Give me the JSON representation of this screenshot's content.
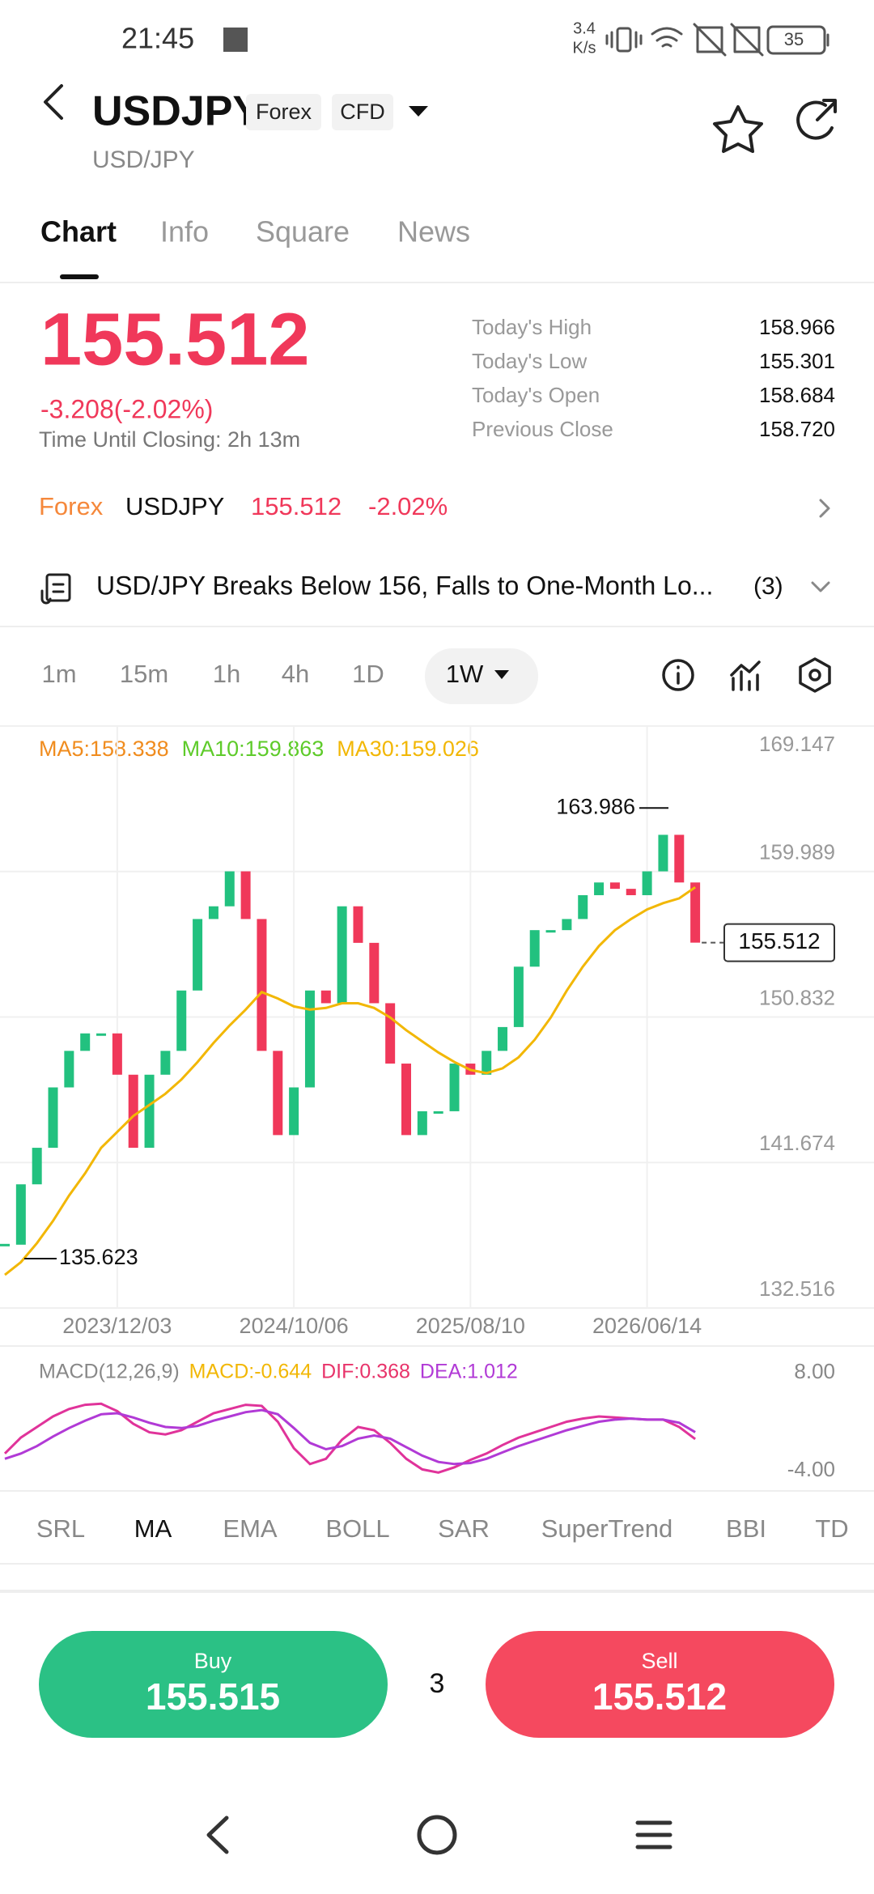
{
  "status_bar": {
    "time": "21:45",
    "net_speed": "3.4",
    "net_unit": "K/s",
    "battery": "35"
  },
  "header": {
    "symbol": "USDJPY",
    "tags": [
      "Forex",
      "CFD"
    ],
    "subtitle": "USD/JPY"
  },
  "tabs": {
    "items": [
      "Chart",
      "Info",
      "Square",
      "News"
    ],
    "active": 0
  },
  "quote": {
    "price": "155.512",
    "change": "-3.208(-2.02%)",
    "closing": "Time Until Closing: 2h 13m",
    "stats": [
      {
        "label": "Today's High",
        "value": "158.966"
      },
      {
        "label": "Today's Low",
        "value": "155.301"
      },
      {
        "label": "Today's Open",
        "value": "158.684"
      },
      {
        "label": "Previous Close",
        "value": "158.720"
      }
    ]
  },
  "ticker": {
    "market": "Forex",
    "symbol": "USDJPY",
    "price": "155.512",
    "change": "-2.02%"
  },
  "news": {
    "headline": "USD/JPY Breaks Below 156, Falls to One-Month Lo...",
    "count": "(3)"
  },
  "intervals": {
    "items": [
      "1m",
      "15m",
      "1h",
      "4h",
      "1D",
      "1W"
    ],
    "active": 5
  },
  "chart_data": {
    "type": "candlestick",
    "legend": [
      {
        "text": "MA5:158.338",
        "color": "#f08c1e"
      },
      {
        "text": "MA10:159.863",
        "color": "#5ecb2a"
      },
      {
        "text": "MA30:159.026",
        "color": "#f2b705"
      }
    ],
    "categories": [
      null,
      null,
      null,
      null,
      null,
      null,
      null,
      "2023/12/03",
      null,
      null,
      null,
      null,
      null,
      null,
      null,
      null,
      null,
      null,
      "2024/10/06",
      null,
      null,
      null,
      null,
      null,
      null,
      null,
      null,
      null,
      null,
      "2025/08/10",
      null,
      null,
      null,
      null,
      null,
      null,
      null,
      null,
      null,
      null,
      "2026/06/14",
      null,
      null,
      null
    ],
    "values": [
      136.5,
      140.3,
      142.6,
      146.4,
      148.7,
      149.8,
      149.8,
      147.2,
      142.6,
      147.2,
      148.7,
      152.5,
      157.0,
      157.8,
      160.0,
      157.0,
      148.7,
      143.4,
      146.4,
      152.5,
      151.7,
      157.8,
      155.5,
      151.7,
      147.9,
      143.4,
      144.9,
      144.9,
      147.9,
      147.2,
      148.7,
      150.2,
      154.0,
      156.3,
      156.3,
      157.0,
      158.5,
      159.3,
      158.9,
      158.5,
      160.0,
      162.3,
      159.3,
      155.512
    ],
    "up_color": "#22c17f",
    "down_color": "#f0385a",
    "ma30": {
      "color": "#f2b705",
      "values": [
        134.6,
        135.4,
        136.6,
        138.0,
        139.6,
        141.0,
        142.6,
        143.6,
        144.6,
        145.3,
        146.0,
        146.9,
        148.0,
        149.2,
        150.3,
        151.3,
        152.4,
        152.0,
        151.5,
        151.3,
        151.4,
        151.7,
        151.7,
        151.4,
        150.8,
        150.0,
        149.3,
        148.6,
        148.0,
        147.5,
        147.3,
        147.6,
        148.3,
        149.4,
        150.8,
        152.5,
        154.0,
        155.3,
        156.3,
        157.0,
        157.6,
        158.0,
        158.3,
        159.0
      ]
    },
    "ylim": [
      132.516,
      169.147
    ],
    "yticks": [
      169.147,
      159.989,
      150.832,
      141.674,
      132.516
    ],
    "grid": true,
    "high": 163.986,
    "low": 135.623,
    "last": 155.512
  },
  "macd": {
    "labels": [
      {
        "text": "MACD(12,26,9)",
        "color": "#888888"
      },
      {
        "text": "MACD:-0.644",
        "color": "#f2b705"
      },
      {
        "text": "DIF:0.368",
        "color": "#e8336a"
      },
      {
        "text": "DEA:1.012",
        "color": "#b13ad6"
      }
    ],
    "ylim": [
      -4,
      8
    ],
    "yticks": [
      {
        "value": 8,
        "label": "8.00"
      },
      {
        "value": -4,
        "label": "-4.00"
      }
    ],
    "series": [
      {
        "color": "#e0339a",
        "values": [
          -1.0,
          0.5,
          1.5,
          2.5,
          3.2,
          3.6,
          3.7,
          3.0,
          1.8,
          1.0,
          0.8,
          1.2,
          2.0,
          2.8,
          3.2,
          3.6,
          3.5,
          2.0,
          -0.5,
          -2.0,
          -1.5,
          0.3,
          1.5,
          1.2,
          0.0,
          -1.5,
          -2.5,
          -2.8,
          -2.3,
          -1.6,
          -1.0,
          -0.2,
          0.5,
          1.0,
          1.5,
          2.0,
          2.3,
          2.5,
          2.4,
          2.3,
          2.2,
          2.2,
          1.5,
          0.368
        ]
      },
      {
        "color": "#b13ad6",
        "values": [
          -1.5,
          -1.0,
          -0.3,
          0.6,
          1.4,
          2.1,
          2.7,
          2.8,
          2.4,
          1.9,
          1.5,
          1.4,
          1.6,
          2.1,
          2.5,
          2.9,
          3.1,
          2.7,
          1.4,
          0.0,
          -0.6,
          -0.3,
          0.4,
          0.7,
          0.4,
          -0.4,
          -1.2,
          -1.8,
          -2.0,
          -1.9,
          -1.5,
          -0.9,
          -0.3,
          0.2,
          0.7,
          1.2,
          1.6,
          2.0,
          2.2,
          2.3,
          2.2,
          2.2,
          1.9,
          1.012
        ]
      }
    ]
  },
  "indicators": {
    "items": [
      "SRL",
      "MA",
      "EMA",
      "BOLL",
      "SAR",
      "SuperTrend",
      "BBI",
      "TD"
    ],
    "active": 1
  },
  "trade": {
    "buy": {
      "label": "Buy",
      "price": "155.515"
    },
    "quantity": "3",
    "sell": {
      "label": "Sell",
      "price": "155.512"
    }
  }
}
